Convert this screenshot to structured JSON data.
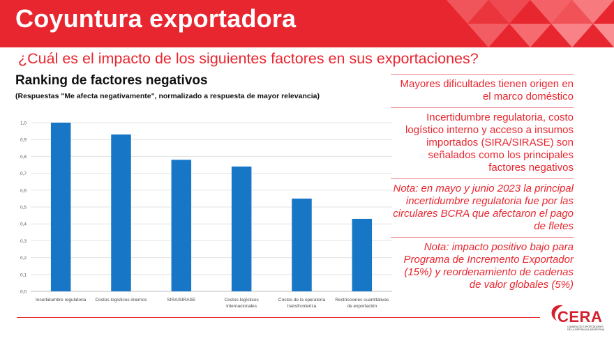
{
  "header": {
    "title": "Coyuntura exportadora",
    "color": "#e8262f"
  },
  "question": "¿Cuál es el impacto de los siguientes factores en sus exportaciones?",
  "chart_data": {
    "type": "bar",
    "title": "Ranking de factores negativos",
    "subtitle": "(Respuestas \"Me afecta negativamente\",  normalizado a respuesta de mayor relevancia)",
    "categories": [
      "Incertidumbre regulatoria",
      "Costos logísticos internos",
      "SIRA/SIRASE",
      "Costos logísticos internacionales",
      "Costos de la operatoria transfronteriza",
      "Restricciones cuantitativas de exportación"
    ],
    "category_lines": [
      [
        "Incertidumbre regulatoria"
      ],
      [
        "Costos logísticos internos"
      ],
      [
        "SIRA/SIRASE"
      ],
      [
        "Costos logísticos",
        "internacionales"
      ],
      [
        "Costos de la operatoria",
        "transfronteriza"
      ],
      [
        "Restricciones cuantitativas",
        "de exportación"
      ]
    ],
    "values": [
      1.0,
      0.93,
      0.78,
      0.74,
      0.55,
      0.43
    ],
    "ylim": [
      0,
      1.0
    ],
    "yticks": [
      "0,0",
      "0,1",
      "0,2",
      "0,3",
      "0,4",
      "0,5",
      "0,6",
      "0,7",
      "0,8",
      "0,9",
      "1,0"
    ],
    "grid": true,
    "bar_color": "#1776c5"
  },
  "notes": [
    "Mayores dificultades tienen origen en el marco doméstico",
    "Incertidumbre regulatoria, costo logístico interno y acceso a insumos importados (SIRA/SIRASE) son señalados como los principales factores negativos",
    "Nota: en mayo y junio 2023 la principal incertidumbre regulatoria fue por las circulares BCRA que afectaron el pago de fletes",
    "Nota: impacto positivo bajo para Programa de Incremento Exportador (15%) y reordenamiento de cadenas de valor globales (5%)"
  ],
  "logo": {
    "name": "CERA",
    "tagline": "Cámara de Exportadores de la República Argentina"
  }
}
